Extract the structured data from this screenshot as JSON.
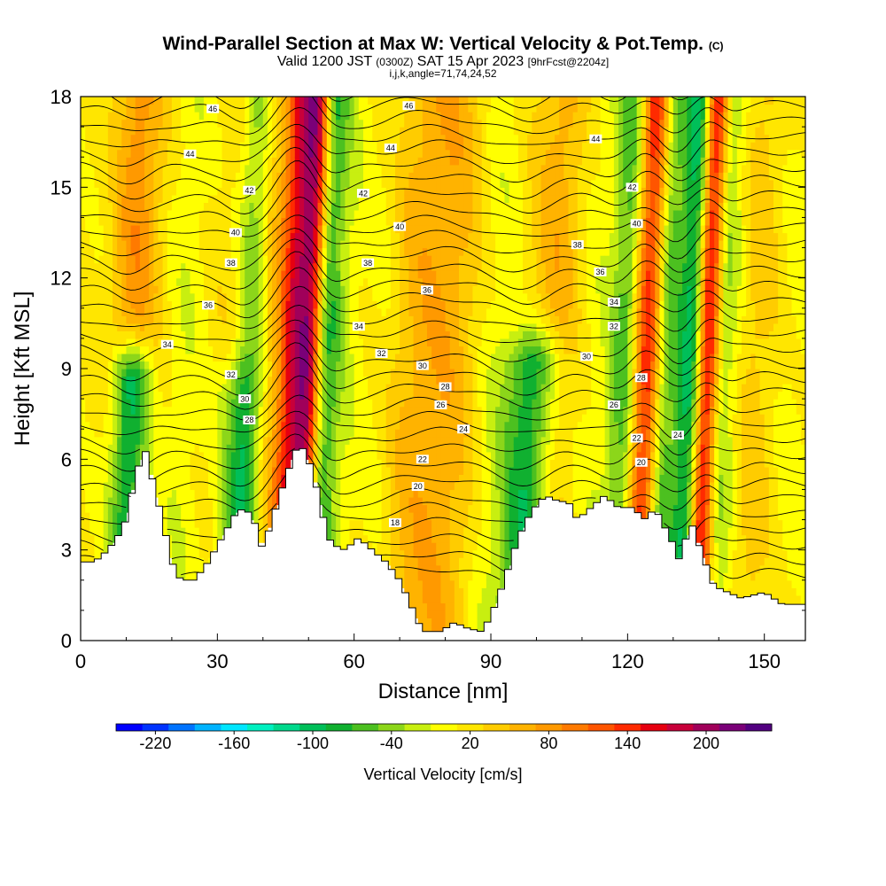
{
  "chart_data": {
    "type": "heatmap",
    "title": "Wind-Parallel Section at Max W: Vertical Velocity & Pot.Temp.",
    "title_mark": "(C)",
    "subtitle_main": "Valid 1200 JST",
    "subtitle_z": "(0300Z)",
    "subtitle_date": "SAT 15 Apr 2023",
    "subtitle_fcst": "[9hrFcst@2204z]",
    "subtitle2": "i,j,k,angle=71,74,24,52",
    "xlabel": "Distance [nm]",
    "ylabel": "Height [Kft MSL]",
    "xlim": [
      0,
      159
    ],
    "ylim": [
      0,
      18
    ],
    "x_ticks": [
      0,
      30,
      60,
      90,
      120,
      150
    ],
    "y_ticks": [
      0,
      3,
      6,
      9,
      12,
      15,
      18
    ],
    "colorbar": {
      "label": "Vertical Velocity [cm/s]",
      "tick_labels": [
        "-220",
        "-160",
        "-100",
        "-40",
        "20",
        "80",
        "140",
        "200"
      ],
      "tick_values": [
        -220,
        -160,
        -100,
        -40,
        20,
        80,
        140,
        200
      ],
      "colors": [
        "#0000ff",
        "#0033ff",
        "#0073ff",
        "#00b3ff",
        "#00e6ff",
        "#00f0c0",
        "#00d98c",
        "#00bf59",
        "#10b030",
        "#4cc020",
        "#8cd61a",
        "#c8ef10",
        "#ffff00",
        "#ffe600",
        "#ffcc00",
        "#ffb300",
        "#ff9900",
        "#ff7a00",
        "#ff5500",
        "#ff2a00",
        "#e60010",
        "#c8003a",
        "#a0005a",
        "#7a0078",
        "#520080"
      ]
    },
    "terrain_kft": [
      [
        0,
        2.6
      ],
      [
        3,
        2.6
      ],
      [
        6,
        3.0
      ],
      [
        8,
        3.4
      ],
      [
        10,
        4.0
      ],
      [
        12,
        5.4
      ],
      [
        14,
        6.4
      ],
      [
        16,
        5.2
      ],
      [
        18,
        4.0
      ],
      [
        20,
        2.6
      ],
      [
        22,
        2.0
      ],
      [
        25,
        2.0
      ],
      [
        28,
        2.6
      ],
      [
        31,
        3.4
      ],
      [
        34,
        4.2
      ],
      [
        36,
        4.4
      ],
      [
        38,
        4.0
      ],
      [
        40,
        3.0
      ],
      [
        42,
        4.0
      ],
      [
        45,
        5.4
      ],
      [
        48,
        6.6
      ],
      [
        51,
        5.6
      ],
      [
        53,
        4.2
      ],
      [
        55,
        3.2
      ],
      [
        58,
        3.0
      ],
      [
        61,
        3.4
      ],
      [
        64,
        3.0
      ],
      [
        67,
        2.6
      ],
      [
        70,
        2.0
      ],
      [
        73,
        1.0
      ],
      [
        75,
        0.3
      ],
      [
        79,
        0.3
      ],
      [
        82,
        0.6
      ],
      [
        85,
        0.4
      ],
      [
        88,
        0.3
      ],
      [
        90,
        0.8
      ],
      [
        93,
        2.0
      ],
      [
        96,
        3.4
      ],
      [
        99,
        4.3
      ],
      [
        102,
        4.8
      ],
      [
        105,
        4.6
      ],
      [
        107,
        4.6
      ],
      [
        109,
        4.0
      ],
      [
        112,
        4.4
      ],
      [
        115,
        4.8
      ],
      [
        118,
        4.4
      ],
      [
        121,
        4.4
      ],
      [
        124,
        4.0
      ],
      [
        126,
        4.4
      ],
      [
        128,
        3.8
      ],
      [
        130,
        3.2
      ],
      [
        131,
        2.6
      ],
      [
        134,
        3.9
      ],
      [
        137,
        2.6
      ],
      [
        139,
        1.8
      ],
      [
        142,
        1.6
      ],
      [
        145,
        1.4
      ],
      [
        150,
        1.6
      ],
      [
        154,
        1.2
      ],
      [
        159,
        1.2
      ]
    ],
    "updrafts": [
      {
        "x": 10,
        "w": 45,
        "sigma": 3.0
      },
      {
        "x": 14,
        "w": 40,
        "sigma": 4.0
      },
      {
        "x": 11,
        "w": -170,
        "sigma": 3.0,
        "ymax": 8.5
      },
      {
        "x": 22,
        "w": -30,
        "sigma": 6.0
      },
      {
        "x": 30,
        "w": 20,
        "sigma": 5.0
      },
      {
        "x": 35,
        "w": -60,
        "sigma": 3.5,
        "ymax": 8.0
      },
      {
        "x": 37,
        "w": -80,
        "sigma": 2.5
      },
      {
        "x": 40,
        "w": 40,
        "sigma": 3.0
      },
      {
        "x": 46,
        "w": 130,
        "sigma": 2.2
      },
      {
        "x": 50,
        "w": 180,
        "sigma": 2.0
      },
      {
        "x": 53,
        "w": -90,
        "sigma": 2.2
      },
      {
        "x": 57,
        "w": -30,
        "sigma": 4.0
      },
      {
        "x": 66,
        "w": -25,
        "sigma": 3.0
      },
      {
        "x": 72,
        "w": 30,
        "sigma": 8.0
      },
      {
        "x": 83,
        "w": 35,
        "sigma": 8.0
      },
      {
        "x": 90,
        "w": -40,
        "sigma": 4.0
      },
      {
        "x": 99,
        "w": -120,
        "sigma": 4.0,
        "ymax": 9.0
      },
      {
        "x": 104,
        "w": 50,
        "sigma": 4.0
      },
      {
        "x": 112,
        "w": -20,
        "sigma": 5.0
      },
      {
        "x": 119,
        "w": -70,
        "sigma": 2.2
      },
      {
        "x": 124,
        "w": 140,
        "sigma": 2.2
      },
      {
        "x": 128,
        "w": -80,
        "sigma": 2.2
      },
      {
        "x": 134,
        "w": -130,
        "sigma": 2.2
      },
      {
        "x": 137,
        "w": 190,
        "sigma": 1.8
      },
      {
        "x": 141,
        "w": -60,
        "sigma": 2.5
      },
      {
        "x": 148,
        "w": 30,
        "sigma": 5.0
      },
      {
        "x": 155,
        "w": -20,
        "sigma": 4.0
      }
    ],
    "theta_contours": {
      "min": 14,
      "max": 46,
      "interval": 1,
      "labeled_interval": 2
    },
    "theta_labels": [
      {
        "x": 29,
        "y": 17.6,
        "label": "46"
      },
      {
        "x": 72,
        "y": 17.7,
        "label": "46"
      },
      {
        "x": 24,
        "y": 16.1,
        "label": "44"
      },
      {
        "x": 68,
        "y": 16.3,
        "label": "44"
      },
      {
        "x": 113,
        "y": 16.6,
        "label": "44"
      },
      {
        "x": 37,
        "y": 14.9,
        "label": "42"
      },
      {
        "x": 62,
        "y": 14.8,
        "label": "42"
      },
      {
        "x": 121,
        "y": 15.0,
        "label": "42"
      },
      {
        "x": 34,
        "y": 13.5,
        "label": "40"
      },
      {
        "x": 70,
        "y": 13.7,
        "label": "40"
      },
      {
        "x": 122,
        "y": 13.8,
        "label": "40"
      },
      {
        "x": 33,
        "y": 12.5,
        "label": "38"
      },
      {
        "x": 63,
        "y": 12.5,
        "label": "38"
      },
      {
        "x": 109,
        "y": 13.1,
        "label": "38"
      },
      {
        "x": 28,
        "y": 11.1,
        "label": "36"
      },
      {
        "x": 76,
        "y": 11.6,
        "label": "36"
      },
      {
        "x": 114,
        "y": 12.2,
        "label": "36"
      },
      {
        "x": 19,
        "y": 9.8,
        "label": "34"
      },
      {
        "x": 61,
        "y": 10.4,
        "label": "34"
      },
      {
        "x": 117,
        "y": 11.2,
        "label": "34"
      },
      {
        "x": 33,
        "y": 8.8,
        "label": "32"
      },
      {
        "x": 66,
        "y": 9.5,
        "label": "32"
      },
      {
        "x": 117,
        "y": 10.4,
        "label": "32"
      },
      {
        "x": 36,
        "y": 8.0,
        "label": "30"
      },
      {
        "x": 75,
        "y": 9.1,
        "label": "30"
      },
      {
        "x": 111,
        "y": 9.4,
        "label": "30"
      },
      {
        "x": 37,
        "y": 7.3,
        "label": "28"
      },
      {
        "x": 80,
        "y": 8.4,
        "label": "28"
      },
      {
        "x": 123,
        "y": 8.7,
        "label": "28"
      },
      {
        "x": 79,
        "y": 7.8,
        "label": "26"
      },
      {
        "x": 117,
        "y": 7.8,
        "label": "26"
      },
      {
        "x": 84,
        "y": 7.0,
        "label": "24"
      },
      {
        "x": 131,
        "y": 6.8,
        "label": "24"
      },
      {
        "x": 75,
        "y": 6.0,
        "label": "22"
      },
      {
        "x": 122,
        "y": 6.7,
        "label": "22"
      },
      {
        "x": 74,
        "y": 5.1,
        "label": "20"
      },
      {
        "x": 123,
        "y": 5.9,
        "label": "20"
      },
      {
        "x": 69,
        "y": 3.9,
        "label": "18"
      }
    ]
  }
}
